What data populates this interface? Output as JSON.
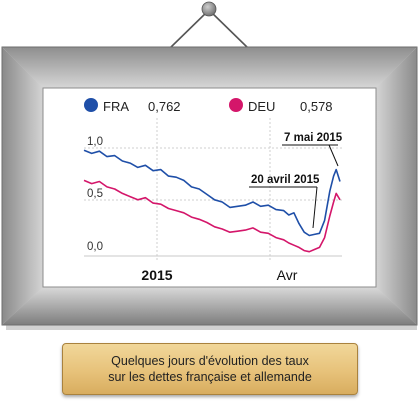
{
  "legend": [
    {
      "name": "FRA",
      "value": "0,762",
      "color": "#1f4fa8"
    },
    {
      "name": "DEU",
      "value": "0,578",
      "color": "#d4166a"
    }
  ],
  "colors": {
    "frame_outer": "#9b9b9b",
    "frame_inner": "#d9d9d9",
    "nail": "#8a8a8a",
    "grid": "#cfcfcf",
    "annotation": "#111111"
  },
  "chart_data": {
    "type": "line",
    "x_ticks": [
      "2015",
      "Avr"
    ],
    "y_ticks": [
      "1,0",
      "0,5",
      "0,0"
    ],
    "ylim": [
      0,
      1.1
    ],
    "grid": true,
    "annotations": [
      {
        "label": "20 avril 2015",
        "x": 0.86,
        "y": 0.13
      },
      {
        "label": "7 mai 2015",
        "x": 0.985,
        "y": 0.76
      }
    ],
    "series": [
      {
        "name": "FRA",
        "x": [
          0.0,
          0.03,
          0.06,
          0.09,
          0.12,
          0.15,
          0.18,
          0.21,
          0.24,
          0.27,
          0.3,
          0.33,
          0.36,
          0.39,
          0.42,
          0.45,
          0.48,
          0.51,
          0.54,
          0.57,
          0.6,
          0.63,
          0.66,
          0.69,
          0.72,
          0.75,
          0.78,
          0.8,
          0.82,
          0.84,
          0.86,
          0.88,
          0.9,
          0.92,
          0.94,
          0.96,
          0.975,
          0.985,
          1.0
        ],
        "values": [
          0.98,
          0.95,
          0.97,
          0.92,
          0.93,
          0.88,
          0.86,
          0.82,
          0.84,
          0.79,
          0.8,
          0.74,
          0.73,
          0.7,
          0.64,
          0.62,
          0.57,
          0.52,
          0.5,
          0.45,
          0.46,
          0.47,
          0.5,
          0.46,
          0.47,
          0.43,
          0.42,
          0.38,
          0.4,
          0.3,
          0.22,
          0.19,
          0.2,
          0.21,
          0.33,
          0.6,
          0.74,
          0.8,
          0.69
        ]
      },
      {
        "name": "DEU",
        "x": [
          0.0,
          0.03,
          0.06,
          0.09,
          0.12,
          0.15,
          0.18,
          0.21,
          0.24,
          0.27,
          0.3,
          0.33,
          0.36,
          0.39,
          0.42,
          0.45,
          0.48,
          0.51,
          0.54,
          0.57,
          0.6,
          0.63,
          0.66,
          0.69,
          0.72,
          0.75,
          0.78,
          0.8,
          0.82,
          0.84,
          0.86,
          0.88,
          0.9,
          0.92,
          0.94,
          0.96,
          0.975,
          0.985,
          1.0
        ],
        "values": [
          0.7,
          0.67,
          0.69,
          0.64,
          0.62,
          0.58,
          0.55,
          0.52,
          0.54,
          0.49,
          0.48,
          0.44,
          0.42,
          0.4,
          0.36,
          0.34,
          0.31,
          0.27,
          0.25,
          0.22,
          0.23,
          0.24,
          0.26,
          0.22,
          0.21,
          0.17,
          0.15,
          0.12,
          0.1,
          0.08,
          0.05,
          0.04,
          0.06,
          0.08,
          0.17,
          0.37,
          0.5,
          0.58,
          0.52
        ]
      }
    ]
  },
  "caption": {
    "line1": "Quelques jours d'évolution des taux",
    "line2": "sur les dettes française et allemande"
  }
}
